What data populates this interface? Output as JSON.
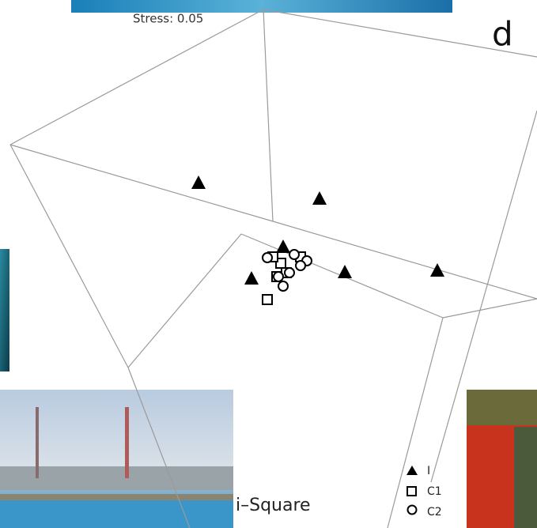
{
  "figure": {
    "stress_label": "Stress: 0.05",
    "panel_letter": "d",
    "legend": [
      "I",
      "C1",
      "C2"
    ]
  },
  "photo_caption": "i–Square"
}
